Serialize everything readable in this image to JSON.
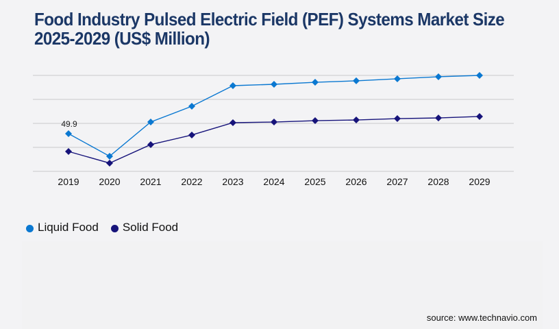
{
  "chart_data": {
    "type": "line",
    "title": "Food Industry Pulsed Electric Field (PEF) Systems Market Size 2025-2029 (US$ Million)",
    "xlabel": "",
    "ylabel": "",
    "categories": [
      "2019",
      "2020",
      "2021",
      "2022",
      "2023",
      "2024",
      "2025",
      "2026",
      "2027",
      "2028",
      "2029"
    ],
    "series": [
      {
        "name": "Liquid Food",
        "color": "#0a78d1",
        "values": [
          49.9,
          20.0,
          65.3,
          86.2,
          113.4,
          115.2,
          117.9,
          119.8,
          122.5,
          125.2,
          127.0
        ]
      },
      {
        "name": "Solid Food",
        "color": "#16137a",
        "values": [
          26.3,
          10.9,
          35.4,
          48.1,
          64.4,
          65.3,
          67.1,
          68.0,
          69.8,
          70.7,
          72.6
        ]
      }
    ],
    "annotations": [
      {
        "series": "Liquid Food",
        "category": "2019",
        "label": "49.9"
      }
    ],
    "ylim": [
      0,
      127
    ],
    "gridlines": 5,
    "grid": true,
    "legend_position": "bottom-left",
    "source": "source: www.technavio.com"
  }
}
